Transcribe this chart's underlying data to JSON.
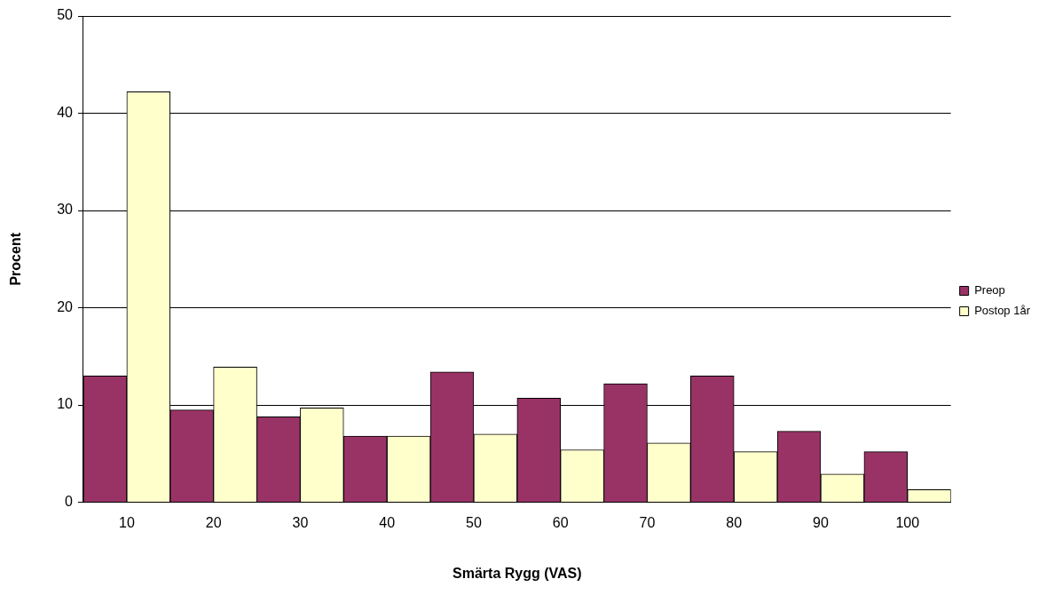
{
  "chart_data": {
    "type": "bar",
    "xlabel": "Smärta Rygg (VAS)",
    "ylabel": "Procent",
    "categories": [
      "10",
      "20",
      "30",
      "40",
      "50",
      "60",
      "70",
      "80",
      "90",
      "100"
    ],
    "series": [
      {
        "name": "Preop",
        "color": "#993366",
        "values": [
          13.0,
          9.5,
          8.8,
          6.8,
          13.4,
          10.7,
          12.2,
          13.0,
          7.3,
          5.2
        ]
      },
      {
        "name": "Postop 1år",
        "color": "#ffffcc",
        "values": [
          42.2,
          13.9,
          9.7,
          6.8,
          7.0,
          5.4,
          6.1,
          5.2,
          2.9,
          1.3
        ]
      }
    ],
    "ylim": [
      0,
      50
    ],
    "yticks": [
      0,
      10,
      20,
      30,
      40,
      50
    ],
    "grid": "y",
    "legend": "right"
  }
}
